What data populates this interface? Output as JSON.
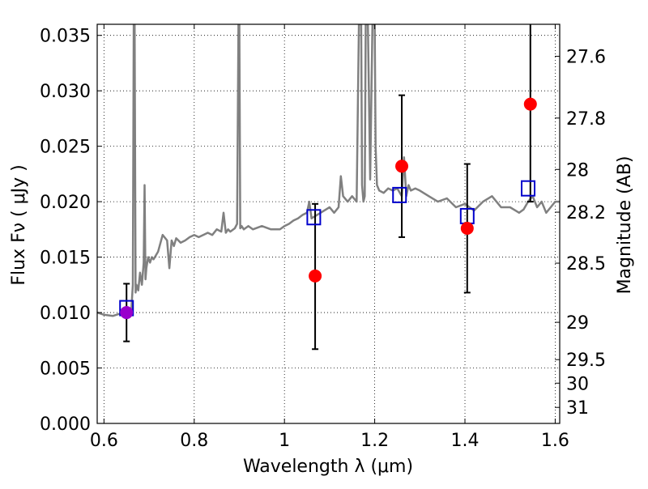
{
  "chart_data": {
    "type": "scatter",
    "title": "",
    "xlabel": "Wavelength  λ (μm)",
    "ylabel": "Flux  Fν  ( μJy )",
    "y2label": "Magnitude (AB)",
    "xlim": [
      0.585,
      1.61
    ],
    "ylim": [
      0.0,
      0.036
    ],
    "grid": true,
    "grid_style": "dotted",
    "xticks": [
      0.6,
      0.8,
      1.0,
      1.2,
      1.4,
      1.6
    ],
    "xtick_labels": [
      "0.6",
      "0.8",
      "1",
      "1.2",
      "1.4",
      "1.6"
    ],
    "yticks": [
      0.0,
      0.005,
      0.01,
      0.015,
      0.02,
      0.025,
      0.03,
      0.035
    ],
    "ytick_labels": [
      "0.000",
      "0.005",
      "0.010",
      "0.015",
      "0.020",
      "0.025",
      "0.030",
      "0.035"
    ],
    "y2ticks": [
      27.6,
      27.8,
      28,
      28.2,
      28.5,
      29,
      29.5,
      30,
      31
    ],
    "y2tick_labels": [
      "27.6",
      "27.8",
      "28",
      "28.2",
      "28.5",
      "29",
      "29.5",
      "30",
      "31"
    ],
    "model_spectrum": {
      "color": "#808080",
      "x": [
        0.585,
        0.6,
        0.62,
        0.635,
        0.645,
        0.655,
        0.66,
        0.664,
        0.666,
        0.668,
        0.67,
        0.672,
        0.676,
        0.68,
        0.684,
        0.688,
        0.69,
        0.692,
        0.694,
        0.698,
        0.702,
        0.706,
        0.71,
        0.72,
        0.73,
        0.74,
        0.745,
        0.75,
        0.755,
        0.76,
        0.77,
        0.78,
        0.79,
        0.8,
        0.81,
        0.82,
        0.83,
        0.84,
        0.85,
        0.86,
        0.865,
        0.87,
        0.875,
        0.88,
        0.89,
        0.895,
        0.898,
        0.9,
        0.902,
        0.905,
        0.91,
        0.92,
        0.93,
        0.95,
        0.97,
        0.99,
        1.0,
        1.01,
        1.02,
        1.03,
        1.04,
        1.05,
        1.055,
        1.06,
        1.08,
        1.1,
        1.11,
        1.12,
        1.125,
        1.13,
        1.14,
        1.15,
        1.16,
        1.165,
        1.17,
        1.172,
        1.175,
        1.178,
        1.18,
        1.185,
        1.19,
        1.195,
        1.2,
        1.202,
        1.205,
        1.21,
        1.22,
        1.23,
        1.24,
        1.25,
        1.26,
        1.265,
        1.27,
        1.275,
        1.28,
        1.29,
        1.3,
        1.32,
        1.34,
        1.36,
        1.38,
        1.4,
        1.42,
        1.44,
        1.46,
        1.48,
        1.5,
        1.52,
        1.53,
        1.54,
        1.55,
        1.56,
        1.57,
        1.58,
        1.59,
        1.6,
        1.61
      ],
      "y": [
        0.01,
        0.0098,
        0.0097,
        0.0099,
        0.01,
        0.0101,
        0.0098,
        0.0125,
        0.036,
        0.036,
        0.0118,
        0.0125,
        0.012,
        0.0136,
        0.0125,
        0.0145,
        0.0215,
        0.013,
        0.014,
        0.015,
        0.0145,
        0.015,
        0.0148,
        0.0155,
        0.017,
        0.0165,
        0.014,
        0.0165,
        0.016,
        0.0167,
        0.0163,
        0.0165,
        0.0168,
        0.017,
        0.0168,
        0.017,
        0.0172,
        0.017,
        0.0175,
        0.0173,
        0.019,
        0.0172,
        0.0175,
        0.0173,
        0.0176,
        0.018,
        0.036,
        0.036,
        0.0176,
        0.0178,
        0.0175,
        0.0178,
        0.0175,
        0.0178,
        0.0175,
        0.0175,
        0.0178,
        0.018,
        0.0183,
        0.0185,
        0.0188,
        0.019,
        0.02,
        0.0185,
        0.019,
        0.0195,
        0.019,
        0.0195,
        0.0223,
        0.0205,
        0.02,
        0.0205,
        0.02,
        0.036,
        0.036,
        0.0215,
        0.02,
        0.0205,
        0.036,
        0.036,
        0.022,
        0.036,
        0.036,
        0.025,
        0.0215,
        0.021,
        0.0208,
        0.0212,
        0.021,
        0.0212,
        0.0205,
        0.024,
        0.0205,
        0.0215,
        0.021,
        0.0212,
        0.021,
        0.0205,
        0.02,
        0.0203,
        0.0195,
        0.0198,
        0.0192,
        0.02,
        0.0205,
        0.0195,
        0.0195,
        0.019,
        0.0193,
        0.02,
        0.0205,
        0.0195,
        0.02,
        0.019,
        0.0195,
        0.02,
        0.02
      ]
    },
    "series": [
      {
        "name": "",
        "marker": "square",
        "color": "#0000cc",
        "x": [
          0.65,
          1.065,
          1.255,
          1.405,
          1.54
        ],
        "y": [
          0.0104,
          0.0186,
          0.0206,
          0.0187,
          0.0212
        ]
      },
      {
        "name": "",
        "marker": "circle",
        "color": "#ff0000",
        "x": [
          0.65,
          1.068,
          1.26,
          1.405,
          1.545
        ],
        "y": [
          0.01,
          0.0133,
          0.0232,
          0.0176,
          0.0288
        ],
        "y_low": [
          0.0074,
          0.0067,
          0.0168,
          0.0118,
          0.02
        ],
        "y_high": [
          0.0126,
          0.0198,
          0.0296,
          0.0234,
          0.036
        ],
        "colors": [
          "#9900cc",
          "#ff0000",
          "#ff0000",
          "#ff0000",
          "#ff0000"
        ]
      }
    ]
  }
}
